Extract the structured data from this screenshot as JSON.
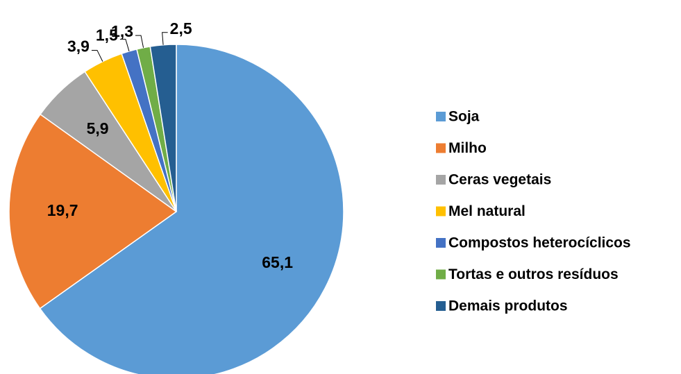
{
  "chart_data": {
    "type": "pie",
    "categories": [
      "Soja",
      "Milho",
      "Ceras vegetais",
      "Mel natural",
      "Compostos heterocíclicos",
      "Tortas e outros resíduos",
      "Demais produtos"
    ],
    "values": [
      65.1,
      19.7,
      5.9,
      3.9,
      1.5,
      1.3,
      2.5
    ],
    "value_labels": [
      "65,1",
      "19,7",
      "5,9",
      "3,9",
      "1,5",
      "1,3",
      "2,5"
    ],
    "colors": [
      "#5b9bd5",
      "#ed7d31",
      "#a5a5a5",
      "#ffc000",
      "#4472c4",
      "#70ad47",
      "#255e91"
    ],
    "legend": "right"
  }
}
